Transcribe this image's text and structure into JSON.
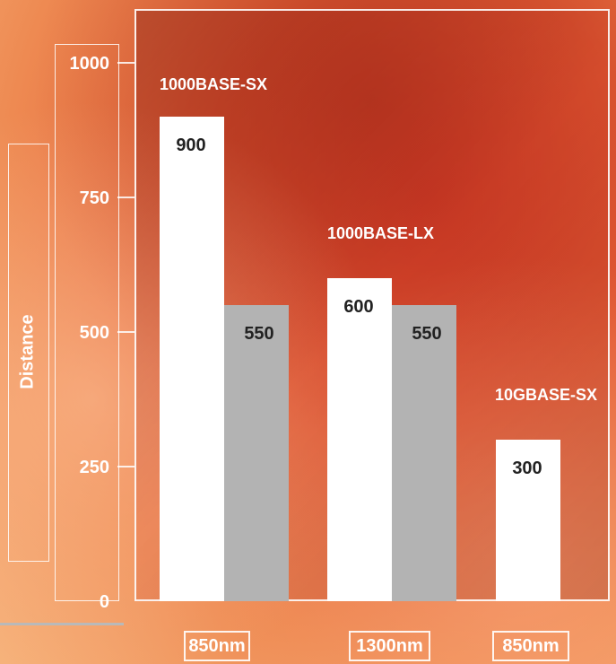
{
  "chart_data": {
    "type": "bar",
    "ylabel": "Distance",
    "ylim": [
      0,
      1000
    ],
    "yticks": [
      "0",
      "250",
      "500",
      "750",
      "1000"
    ],
    "groups": [
      {
        "name": "1000BASE-SX",
        "wavelength": "850nm",
        "bars": [
          {
            "value": 900,
            "label": "900",
            "color": "#ffffff"
          },
          {
            "value": 550,
            "label": "550",
            "color": "#b3b3b3"
          }
        ]
      },
      {
        "name": "1000BASE-LX",
        "wavelength": "1300nm",
        "bars": [
          {
            "value": 600,
            "label": "600",
            "color": "#ffffff"
          },
          {
            "value": 550,
            "label": "550",
            "color": "#b3b3b3"
          }
        ]
      },
      {
        "name": "10GBASE-SX",
        "wavelength": "850nm",
        "bars": [
          {
            "value": 300,
            "label": "300",
            "color": "#ffffff"
          }
        ]
      }
    ]
  },
  "colors": {
    "label_color": "#222222",
    "frame_color": "#ffffff",
    "grid_color": "#ffffff"
  }
}
